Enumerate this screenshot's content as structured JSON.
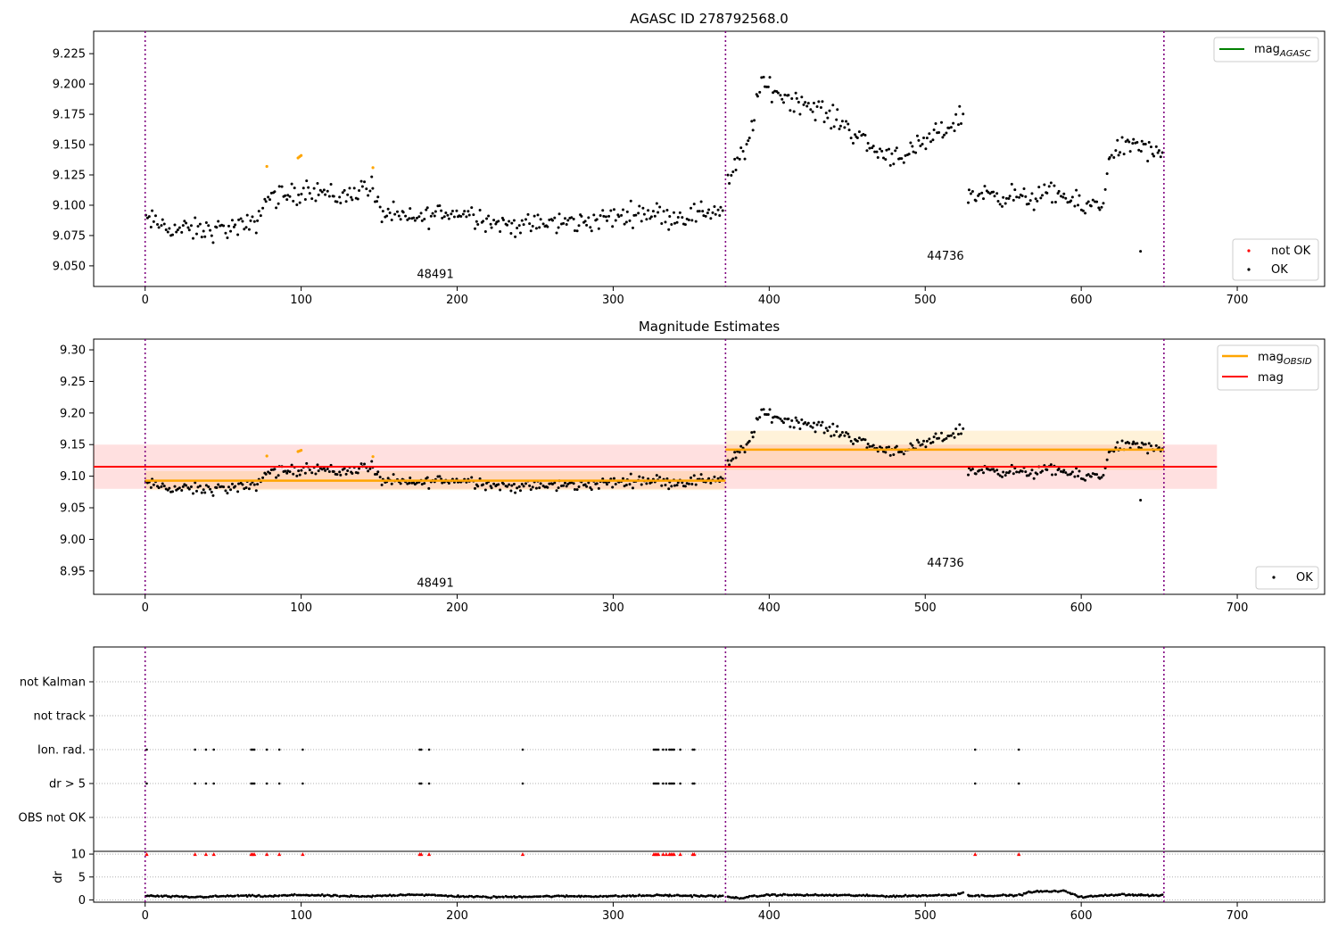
{
  "chart_data": [
    {
      "type": "scatter",
      "title": "AGASC ID 278792568.0",
      "xlim": [
        -33,
        756
      ],
      "ylim": [
        9.033,
        9.2435
      ],
      "xticks": [
        "0",
        "100",
        "200",
        "300",
        "400",
        "500",
        "600",
        "700"
      ],
      "yticks": [
        "9.050",
        "9.075",
        "9.100",
        "9.125",
        "9.150",
        "9.175",
        "9.200",
        "9.225"
      ],
      "observation_boundaries": [
        0,
        372,
        653
      ],
      "observation_labels": [
        {
          "text": "48491",
          "x": 186,
          "y": 9.04
        },
        {
          "text": "44736",
          "x": 513,
          "y": 9.055
        }
      ],
      "legend_upper": {
        "position": "upper right",
        "entries": [
          {
            "label": "mag",
            "sub": "AGASC",
            "color": "#008000"
          }
        ]
      },
      "legend_lower": {
        "position": "lower right",
        "entries": [
          {
            "label": "not OK",
            "color": "#ff0000"
          },
          {
            "label": "OK",
            "color": "#000000"
          }
        ]
      },
      "series": [
        {
          "name": "OK",
          "color": "#000000",
          "mean": [
            [
              0,
              9.088
            ],
            [
              20,
              9.08
            ],
            [
              40,
              9.079
            ],
            [
              60,
              9.082
            ],
            [
              70,
              9.083
            ],
            [
              78,
              9.107
            ],
            [
              95,
              9.108
            ],
            [
              105,
              9.115
            ],
            [
              125,
              9.106
            ],
            [
              145,
              9.117
            ],
            [
              150,
              9.095
            ],
            [
              170,
              9.088
            ],
            [
              190,
              9.094
            ],
            [
              210,
              9.093
            ],
            [
              225,
              9.085
            ],
            [
              240,
              9.083
            ],
            [
              260,
              9.085
            ],
            [
              280,
              9.086
            ],
            [
              300,
              9.09
            ],
            [
              320,
              9.095
            ],
            [
              340,
              9.09
            ],
            [
              360,
              9.095
            ],
            [
              371,
              9.097
            ],
            [
              373,
              9.12
            ],
            [
              385,
              9.145
            ],
            [
              395,
              9.2
            ],
            [
              410,
              9.19
            ],
            [
              430,
              9.18
            ],
            [
              450,
              9.165
            ],
            [
              470,
              9.143
            ],
            [
              490,
              9.142
            ],
            [
              510,
              9.16
            ],
            [
              525,
              9.175
            ],
            [
              527,
              9.108
            ],
            [
              545,
              9.11
            ],
            [
              565,
              9.105
            ],
            [
              585,
              9.11
            ],
            [
              600,
              9.098
            ],
            [
              615,
              9.103
            ],
            [
              618,
              9.145
            ],
            [
              635,
              9.15
            ],
            [
              650,
              9.14
            ]
          ],
          "noise": 0.008,
          "count": 600,
          "outliers": [
            [
              638,
              9.062
            ]
          ]
        },
        {
          "name": "mag_OBSID excluded",
          "color": "#ffa500",
          "points": [
            [
              78,
              9.132
            ],
            [
              98,
              9.139
            ],
            [
              99,
              9.14
            ],
            [
              100,
              9.141
            ],
            [
              146,
              9.131
            ]
          ]
        }
      ]
    },
    {
      "type": "scatter",
      "title": "Magnitude Estimates",
      "xlim": [
        -33,
        756
      ],
      "ylim": [
        8.913,
        9.317
      ],
      "xticks": [
        "0",
        "100",
        "200",
        "300",
        "400",
        "500",
        "600",
        "700"
      ],
      "yticks": [
        "8.95",
        "9.00",
        "9.05",
        "9.10",
        "9.15",
        "9.20",
        "9.25",
        "9.30"
      ],
      "observation_boundaries": [
        0,
        372,
        653
      ],
      "observation_labels": [
        {
          "text": "48491",
          "x": 186,
          "y": 8.925
        },
        {
          "text": "44736",
          "x": 513,
          "y": 8.957
        }
      ],
      "legend_upper": {
        "position": "upper right",
        "entries": [
          {
            "label": "mag",
            "sub": "OBSID",
            "color": "#ffa500"
          },
          {
            "label": "mag",
            "sub": "",
            "color": "#ff0000"
          }
        ]
      },
      "legend_lower": {
        "position": "lower right",
        "entries": [
          {
            "label": "OK",
            "color": "#000000"
          }
        ]
      },
      "mag": {
        "value": 9.115,
        "band": [
          9.08,
          9.15
        ],
        "x": [
          -33,
          687
        ],
        "color": "#ff0000"
      },
      "mag_obsid": [
        {
          "x": [
            0,
            372
          ],
          "value": 9.093,
          "band": [
            9.078,
            9.108
          ]
        },
        {
          "x": [
            372,
            653
          ],
          "value": 9.142,
          "band": [
            9.11,
            9.172
          ]
        }
      ]
    },
    {
      "type": "scatter",
      "title": "",
      "xlim": [
        -33,
        756
      ],
      "ytick_labels": [
        "not Kalman",
        "not track",
        "Ion. rad.",
        "dr > 5",
        "OBS not OK"
      ],
      "flag_rows": [
        "Ion. rad.",
        "dr > 5"
      ],
      "flag_x": [
        1,
        32,
        39,
        44,
        68,
        69,
        70,
        78,
        86,
        101,
        176,
        177,
        182,
        242,
        326,
        327,
        328,
        329,
        332,
        334,
        336,
        337,
        338,
        339,
        343,
        351,
        352,
        532,
        560
      ],
      "observation_boundaries": [
        0,
        372,
        653
      ]
    },
    {
      "type": "scatter",
      "title": "",
      "ylabel": "dr",
      "xlim": [
        -33,
        756
      ],
      "ylim": [
        -0.5,
        10.6
      ],
      "xticks": [
        "0",
        "100",
        "200",
        "300",
        "400",
        "500",
        "600",
        "700"
      ],
      "yticks": [
        "0",
        "5",
        "10"
      ],
      "observation_boundaries": [
        0,
        372,
        653
      ],
      "dr_trace": [
        [
          0,
          0.9
        ],
        [
          30,
          0.6
        ],
        [
          60,
          0.9
        ],
        [
          80,
          0.8
        ],
        [
          100,
          1.1
        ],
        [
          140,
          0.7
        ],
        [
          170,
          1.2
        ],
        [
          200,
          0.8
        ],
        [
          220,
          0.6
        ],
        [
          260,
          0.8
        ],
        [
          300,
          0.8
        ],
        [
          330,
          1.0
        ],
        [
          370,
          0.8
        ],
        [
          380,
          0.4
        ],
        [
          400,
          1.1
        ],
        [
          450,
          1.0
        ],
        [
          480,
          0.8
        ],
        [
          520,
          1.1
        ],
        [
          525,
          1.9
        ],
        [
          528,
          0.9
        ],
        [
          560,
          1.0
        ],
        [
          568,
          1.8
        ],
        [
          590,
          1.9
        ],
        [
          600,
          0.6
        ],
        [
          625,
          1.2
        ],
        [
          653,
          0.9
        ]
      ],
      "clipped_x": [
        1,
        32,
        39,
        44,
        68,
        69,
        70,
        78,
        86,
        101,
        176,
        177,
        182,
        242,
        326,
        327,
        328,
        329,
        332,
        334,
        336,
        337,
        338,
        339,
        343,
        351,
        352,
        532,
        560
      ]
    }
  ]
}
